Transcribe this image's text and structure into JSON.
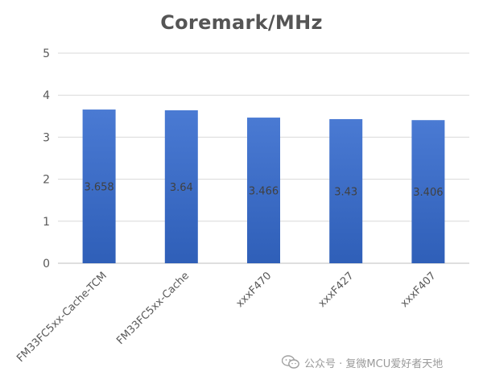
{
  "chart_data": {
    "type": "bar",
    "title": "Coremark/MHz",
    "categories": [
      "FM33FC5xx-Cache-TCM",
      "FM33FC5xx-Cache",
      "xxxF470",
      "xxxF427",
      "xxxF407"
    ],
    "values": [
      3.658,
      3.64,
      3.466,
      3.43,
      3.406
    ],
    "data_labels": [
      "3.658",
      "3.64",
      "3.466",
      "3.43",
      "3.406"
    ],
    "y_ticks": [
      "0",
      "1",
      "2",
      "3",
      "4",
      "5"
    ],
    "ylim": [
      0,
      5
    ],
    "xlabel": "",
    "ylabel": "",
    "grid": true,
    "legend": "none",
    "bar_color": "#4472C4"
  },
  "watermark": {
    "text": "公众号 · 复微MCU爱好者天地",
    "icon": "wechat-icon"
  }
}
